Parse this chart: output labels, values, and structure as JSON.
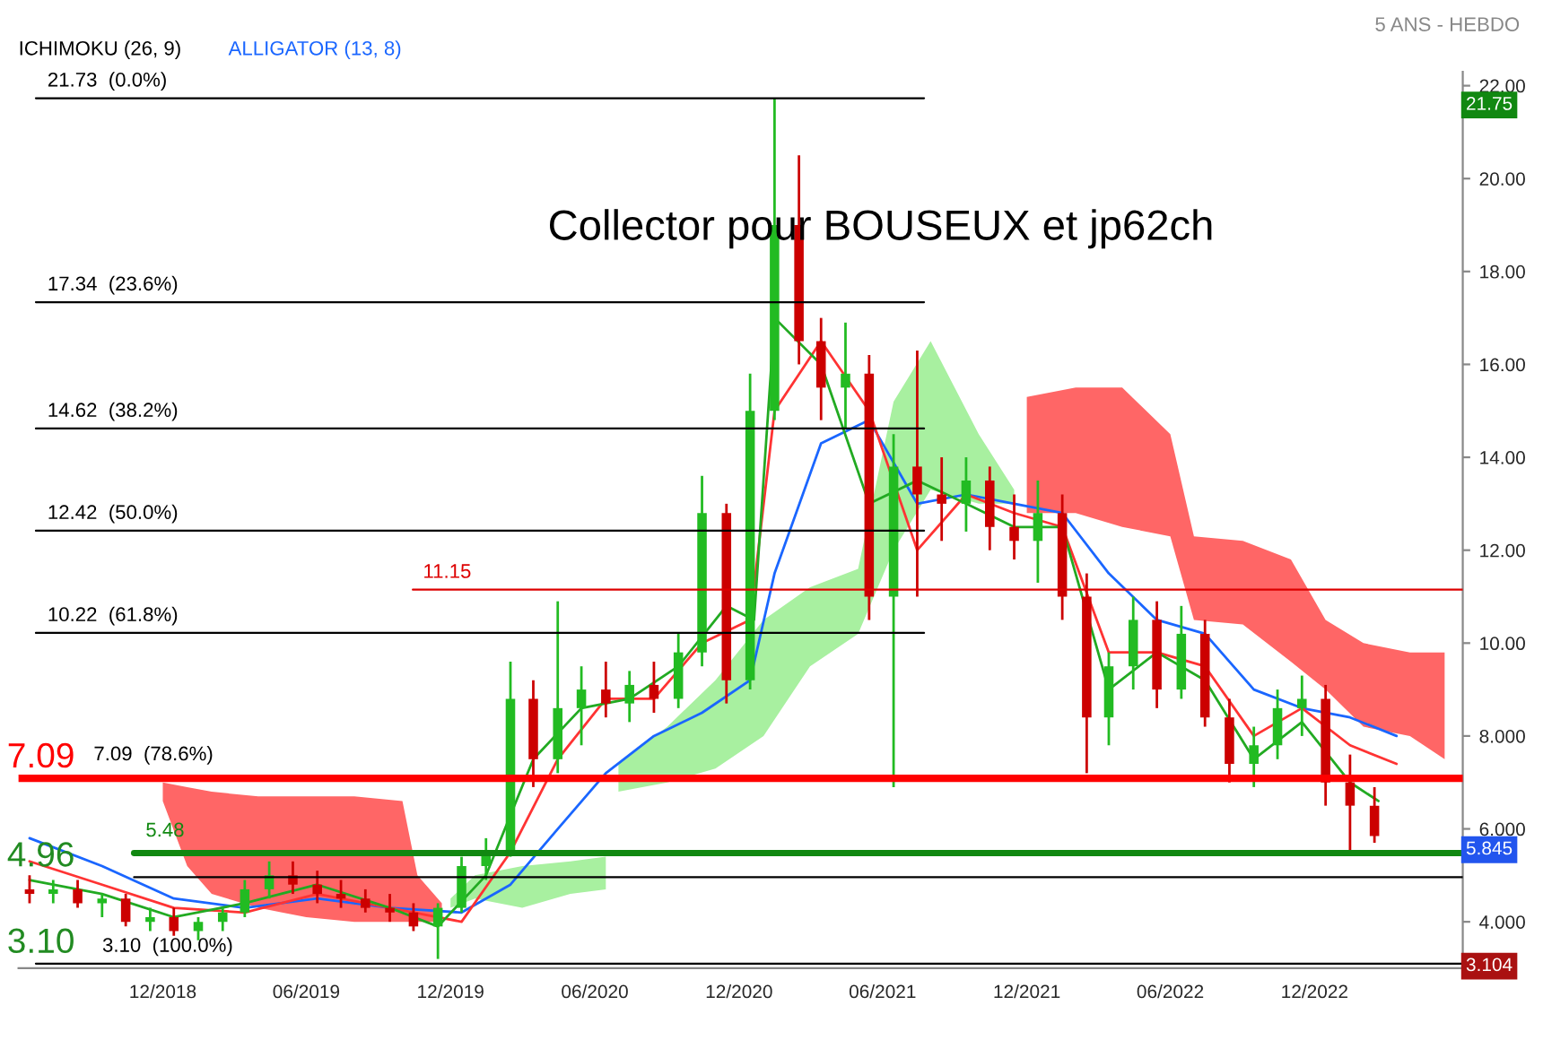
{
  "chart_data": {
    "type": "candlestick",
    "title": "5 ANS - HEBDO",
    "annotations": [
      "ICHIMOKU (26, 9)",
      "ALLIGATOR (13, 8)",
      "Collector pour BOUSEUX et jp62ch",
      "21.75",
      "5.845",
      "3.104",
      {
        "text": "7.09",
        "y": 7.09
      },
      {
        "text": "4.96",
        "y": 4.96
      },
      {
        "text": "3.10",
        "y": 3.1
      }
    ],
    "x": [
      "2018-06-15",
      "2018-07-15",
      "2018-08-15",
      "2018-09-15",
      "2018-10-15",
      "2018-11-15",
      "2018-12-15",
      "2019-01-15",
      "2019-02-15",
      "2019-03-15",
      "2019-04-15",
      "2019-05-15",
      "2019-06-15",
      "2019-07-15",
      "2019-08-15",
      "2019-09-15",
      "2019-10-15",
      "2019-11-15",
      "2019-12-15",
      "2020-01-15",
      "2020-02-15",
      "2020-03-15",
      "2020-04-15",
      "2020-05-15",
      "2020-06-15",
      "2020-07-15",
      "2020-08-15",
      "2020-09-15",
      "2020-10-15",
      "2020-11-15",
      "2020-12-15",
      "2021-01-15",
      "2021-02-15",
      "2021-03-15",
      "2021-04-15",
      "2021-05-15",
      "2021-06-15",
      "2021-07-15",
      "2021-08-15",
      "2021-09-15",
      "2021-10-15",
      "2021-11-15",
      "2021-12-15",
      "2022-01-15",
      "2022-02-15",
      "2022-03-15",
      "2022-04-15",
      "2022-05-15",
      "2022-06-15",
      "2022-07-15",
      "2022-08-15",
      "2022-09-15",
      "2022-10-15",
      "2022-11-15",
      "2022-12-15",
      "2023-01-15",
      "2023-02-15"
    ],
    "ohlc": [
      [
        4.7,
        5.0,
        4.4,
        4.6
      ],
      [
        4.6,
        4.9,
        4.4,
        4.7
      ],
      [
        4.7,
        4.9,
        4.3,
        4.4
      ],
      [
        4.4,
        4.6,
        4.1,
        4.5
      ],
      [
        4.5,
        4.6,
        3.9,
        4.0
      ],
      [
        4.0,
        4.3,
        3.8,
        4.1
      ],
      [
        4.1,
        4.3,
        3.7,
        3.8
      ],
      [
        3.8,
        4.1,
        3.6,
        4.0
      ],
      [
        4.0,
        4.3,
        3.8,
        4.2
      ],
      [
        4.2,
        4.9,
        4.1,
        4.7
      ],
      [
        4.7,
        5.3,
        4.5,
        5.0
      ],
      [
        5.0,
        5.3,
        4.6,
        4.8
      ],
      [
        4.8,
        5.1,
        4.4,
        4.6
      ],
      [
        4.6,
        4.9,
        4.3,
        4.5
      ],
      [
        4.5,
        4.7,
        4.2,
        4.3
      ],
      [
        4.3,
        4.6,
        4.0,
        4.2
      ],
      [
        4.2,
        4.4,
        3.8,
        3.9
      ],
      [
        3.9,
        4.4,
        3.2,
        4.3
      ],
      [
        4.3,
        5.4,
        4.2,
        5.2
      ],
      [
        5.2,
        5.8,
        4.9,
        5.5
      ],
      [
        5.5,
        9.6,
        5.4,
        8.8
      ],
      [
        8.8,
        9.2,
        6.9,
        7.5
      ],
      [
        7.5,
        10.9,
        7.2,
        8.6
      ],
      [
        8.6,
        9.5,
        7.8,
        9.0
      ],
      [
        9.0,
        9.6,
        8.4,
        8.7
      ],
      [
        8.7,
        9.4,
        8.3,
        9.1
      ],
      [
        9.1,
        9.6,
        8.5,
        8.8
      ],
      [
        8.8,
        10.2,
        8.6,
        9.8
      ],
      [
        9.8,
        13.6,
        9.5,
        12.8
      ],
      [
        12.8,
        13.0,
        8.7,
        9.2
      ],
      [
        9.2,
        15.8,
        9.0,
        15.0
      ],
      [
        15.0,
        21.73,
        14.8,
        19.0
      ],
      [
        19.0,
        20.5,
        16.0,
        16.5
      ],
      [
        16.5,
        17.0,
        14.8,
        15.5
      ],
      [
        15.5,
        16.9,
        14.6,
        15.8
      ],
      [
        15.8,
        16.2,
        10.5,
        11.0
      ],
      [
        11.0,
        14.5,
        6.9,
        13.8
      ],
      [
        13.8,
        16.3,
        11.0,
        13.2
      ],
      [
        13.2,
        14.0,
        12.2,
        13.0
      ],
      [
        13.0,
        14.0,
        12.4,
        13.5
      ],
      [
        13.5,
        13.8,
        12.0,
        12.5
      ],
      [
        12.5,
        13.2,
        11.8,
        12.2
      ],
      [
        12.2,
        13.5,
        11.3,
        12.8
      ],
      [
        12.8,
        13.2,
        10.5,
        11.0
      ],
      [
        11.0,
        11.5,
        7.2,
        8.4
      ],
      [
        8.4,
        9.8,
        7.8,
        9.5
      ],
      [
        9.5,
        11.0,
        9.0,
        10.5
      ],
      [
        10.5,
        10.9,
        8.6,
        9.0
      ],
      [
        9.0,
        10.8,
        8.8,
        10.2
      ],
      [
        10.2,
        10.5,
        8.2,
        8.4
      ],
      [
        8.4,
        8.8,
        7.0,
        7.4
      ],
      [
        7.4,
        8.2,
        6.9,
        7.8
      ],
      [
        7.8,
        9.0,
        7.5,
        8.6
      ],
      [
        8.6,
        9.3,
        8.0,
        8.8
      ],
      [
        8.8,
        9.1,
        6.5,
        7.0
      ],
      [
        7.0,
        7.6,
        5.5,
        6.5
      ],
      [
        6.5,
        6.9,
        5.7,
        5.845
      ]
    ],
    "colors": [
      "#cc0000",
      "#22bb22",
      "#cc0000",
      "#22bb22",
      "#cc0000",
      "#22bb22",
      "#cc0000",
      "#22bb22",
      "#22bb22",
      "#22bb22",
      "#22bb22",
      "#cc0000",
      "#cc0000",
      "#cc0000",
      "#cc0000",
      "#cc0000",
      "#cc0000",
      "#22bb22",
      "#22bb22",
      "#22bb22",
      "#22bb22",
      "#cc0000",
      "#22bb22",
      "#22bb22",
      "#cc0000",
      "#22bb22",
      "#cc0000",
      "#22bb22",
      "#22bb22",
      "#cc0000",
      "#22bb22",
      "#22bb22",
      "#cc0000",
      "#cc0000",
      "#22bb22",
      "#cc0000",
      "#22bb22",
      "#cc0000",
      "#cc0000",
      "#22bb22",
      "#cc0000",
      "#cc0000",
      "#22bb22",
      "#cc0000",
      "#cc0000",
      "#22bb22",
      "#22bb22",
      "#cc0000",
      "#22bb22",
      "#cc0000",
      "#cc0000",
      "#22bb22",
      "#22bb22",
      "#22bb22",
      "#cc0000",
      "#cc0000",
      "#cc0000"
    ],
    "series": [
      {
        "type": "line",
        "color": "#ff6666",
        "x": [
          "2018-12-01",
          "2019-01-01",
          "2019-02-01",
          "2019-04-01",
          "2019-06-01",
          "2019-08-01",
          "2019-10-01",
          "2019-10-20",
          "2019-11-20"
        ],
        "values": [
          null,
          null,
          null,
          null,
          null,
          null,
          null,
          null,
          null
        ],
        "lower": [
          6.6,
          5.2,
          4.6,
          4.3,
          4.1,
          4.0,
          4.0,
          4.0,
          4.0
        ],
        "upper": [
          7.0,
          6.9,
          6.8,
          6.7,
          6.7,
          6.7,
          6.6,
          5.0,
          4.4
        ]
      },
      {
        "type": "line",
        "color": "#a8f0a0",
        "x": [
          "2019-12-01",
          "2020-01-01",
          "2020-03-01",
          "2020-05-01",
          "2020-06-15"
        ],
        "values": [
          null,
          null,
          null,
          null,
          null
        ],
        "lower": [
          4.3,
          4.5,
          4.3,
          4.6,
          4.7
        ],
        "upper": [
          4.5,
          5.0,
          5.2,
          5.3,
          5.4
        ]
      },
      {
        "type": "line",
        "color": "#a8f0a0",
        "x": [
          "2020-07-01",
          "2020-09-01",
          "2020-11-01",
          "2021-01-01",
          "2021-03-01",
          "2021-05-01",
          "2021-06-15",
          "2021-08-01",
          "2021-10-01",
          "2021-11-15"
        ],
        "values": [
          null,
          null,
          null,
          null,
          null,
          null,
          null,
          null,
          null,
          null
        ],
        "lower": [
          6.8,
          7.0,
          7.3,
          8.0,
          9.5,
          10.2,
          12.0,
          13.3,
          13.0,
          13.0
        ],
        "upper": [
          7.4,
          8.2,
          9.2,
          10.5,
          11.2,
          11.6,
          15.2,
          16.5,
          14.5,
          13.3
        ]
      },
      {
        "type": "line",
        "color": "#ff6666",
        "x": [
          "2021-12-01",
          "2022-02-01",
          "2022-04-01",
          "2022-06-01",
          "2022-07-01",
          "2022-09-01",
          "2022-11-01",
          "2022-12-15",
          "2023-02-01",
          "2023-04-01",
          "2023-05-15"
        ],
        "values": [
          null,
          null,
          null,
          null,
          null,
          null,
          null,
          null,
          null,
          null,
          null
        ],
        "lower": [
          12.8,
          12.8,
          12.5,
          12.3,
          10.5,
          10.4,
          9.6,
          9.0,
          8.2,
          8.0,
          7.5
        ],
        "upper": [
          15.3,
          15.5,
          15.5,
          14.5,
          12.3,
          12.2,
          11.8,
          10.5,
          10.0,
          9.8,
          9.8
        ]
      },
      {
        "type": "line",
        "color": "#1a66ff",
        "x": [
          "2018-06-15",
          "2018-09-15",
          "2018-12-15",
          "2019-03-15",
          "2019-06-15",
          "2019-09-15",
          "2019-12-15",
          "2020-02-15",
          "2020-04-15",
          "2020-06-15",
          "2020-08-15",
          "2020-10-15",
          "2020-12-15",
          "2021-01-15",
          "2021-03-15",
          "2021-05-15",
          "2021-07-15",
          "2021-09-15",
          "2021-11-15",
          "2022-01-15",
          "2022-03-15",
          "2022-05-15",
          "2022-07-15",
          "2022-09-15",
          "2022-11-15",
          "2023-01-15",
          "2023-03-15"
        ],
        "values": [
          5.8,
          5.2,
          4.5,
          4.3,
          4.5,
          4.3,
          4.2,
          4.8,
          6.0,
          7.2,
          8.0,
          8.5,
          9.2,
          11.5,
          14.3,
          14.8,
          13.0,
          13.2,
          13.0,
          12.8,
          11.5,
          10.5,
          10.2,
          9.0,
          8.6,
          8.4,
          8.0
        ]
      },
      {
        "type": "line",
        "color": "#ff3333",
        "x": [
          "2018-06-15",
          "2018-09-15",
          "2018-12-15",
          "2019-03-15",
          "2019-06-15",
          "2019-09-15",
          "2019-12-15",
          "2020-02-15",
          "2020-04-15",
          "2020-06-15",
          "2020-08-15",
          "2020-10-15",
          "2020-12-15",
          "2021-01-15",
          "2021-03-15",
          "2021-05-15",
          "2021-07-15",
          "2021-09-15",
          "2021-11-15",
          "2022-01-15",
          "2022-03-15",
          "2022-05-15",
          "2022-07-15",
          "2022-09-15",
          "2022-11-15",
          "2023-01-15",
          "2023-03-15"
        ],
        "values": [
          5.3,
          4.8,
          4.3,
          4.2,
          4.6,
          4.3,
          4.0,
          5.5,
          7.5,
          8.8,
          8.8,
          10.0,
          10.5,
          15.0,
          16.5,
          15.0,
          12.0,
          13.2,
          12.8,
          12.5,
          9.8,
          9.8,
          9.5,
          8.0,
          8.6,
          7.8,
          7.4
        ]
      },
      {
        "type": "line",
        "color": "#22aa22",
        "x": [
          "2018-06-15",
          "2018-09-15",
          "2018-12-15",
          "2019-03-15",
          "2019-06-15",
          "2019-09-15",
          "2019-11-15",
          "2020-01-15",
          "2020-03-15",
          "2020-05-15",
          "2020-07-15",
          "2020-09-15",
          "2020-11-15",
          "2020-12-20",
          "2021-01-15",
          "2021-03-15",
          "2021-05-15",
          "2021-07-15",
          "2021-09-15",
          "2021-11-15",
          "2022-01-15",
          "2022-03-15",
          "2022-05-15",
          "2022-07-15",
          "2022-09-15",
          "2022-11-15",
          "2023-01-15",
          "2023-02-20"
        ],
        "values": [
          4.9,
          4.6,
          4.1,
          4.4,
          4.8,
          4.3,
          3.9,
          5.0,
          7.5,
          8.6,
          8.8,
          9.5,
          10.8,
          10.5,
          17.0,
          16.0,
          13.0,
          13.5,
          13.0,
          12.5,
          12.5,
          9.0,
          9.8,
          9.2,
          7.5,
          8.3,
          7.0,
          6.6
        ]
      }
    ],
    "ref_lines": [
      {
        "axis": "y",
        "value": 21.73,
        "label": "21.73  (0.0%)",
        "color": "#000000"
      },
      {
        "axis": "y",
        "value": 17.34,
        "label": "17.34  (23.6%)",
        "color": "#000000"
      },
      {
        "axis": "y",
        "value": 14.62,
        "label": "14.62  (38.2%)",
        "color": "#000000"
      },
      {
        "axis": "y",
        "value": 12.42,
        "label": "12.42  (50.0%)",
        "color": "#000000"
      },
      {
        "axis": "y",
        "value": 10.22,
        "label": "10.22  (61.8%)",
        "color": "#000000"
      },
      {
        "axis": "y",
        "value": 7.09,
        "label": "7.09  (78.6%)",
        "color": "#ff0000"
      },
      {
        "axis": "y",
        "value": 3.1,
        "label": "3.10  (100.0%)",
        "color": "#000000"
      },
      {
        "axis": "y",
        "value": 11.15,
        "label": "11.15",
        "color": "#dd0000"
      },
      {
        "axis": "y",
        "value": 5.48,
        "label": "5.48",
        "color": "#118811"
      },
      {
        "axis": "y",
        "value": 4.96,
        "color": "#000000"
      }
    ],
    "xlim": [
      "2018-06-01",
      "2023-06-07"
    ],
    "xticks": [
      {
        "value": "2018-12-01",
        "label": "12/2018"
      },
      {
        "value": "2019-06-01",
        "label": "06/2019"
      },
      {
        "value": "2019-12-01",
        "label": "12/2019"
      },
      {
        "value": "2020-06-01",
        "label": "06/2020"
      },
      {
        "value": "2020-12-01",
        "label": "12/2020"
      },
      {
        "value": "2021-06-01",
        "label": "06/2021"
      },
      {
        "value": "2021-12-01",
        "label": "12/2021"
      },
      {
        "value": "2022-06-01",
        "label": "06/2022"
      },
      {
        "value": "2022-12-01",
        "label": "12/2022"
      }
    ],
    "ylim": [
      3.0,
      22.3
    ],
    "yticks": [
      {
        "value": 4,
        "label": "4.000"
      },
      {
        "value": 6,
        "label": "6.000"
      },
      {
        "value": 8,
        "label": "8.000"
      },
      {
        "value": 10,
        "label": "10.00"
      },
      {
        "value": 12,
        "label": "12.00"
      },
      {
        "value": 14,
        "label": "14.00"
      },
      {
        "value": 16,
        "label": "16.00"
      },
      {
        "value": 18,
        "label": "18.00"
      },
      {
        "value": 20,
        "label": "20.00"
      },
      {
        "value": 22,
        "label": "22.00"
      }
    ]
  }
}
